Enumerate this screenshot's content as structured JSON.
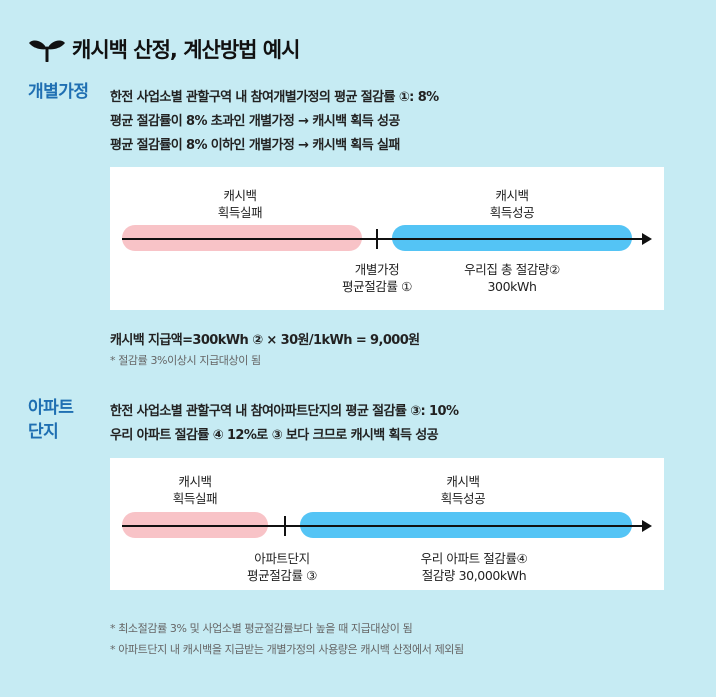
{
  "title": "캐시백 산정, 계산방법 예시",
  "sections": [
    {
      "label_line1": "개별가정",
      "lines": [
        "한전 사업소별 관할구역 내 참여개별가정의 평균 절감률 ①: 8%",
        "평균 절감률이 8% 초과인 개별가정 → 캐시백 획득 성공",
        "평균 절감률이 8% 이하인 개별가정 → 캐시백 획득 실패"
      ],
      "diagram": {
        "fail_line1": "캐시백",
        "fail_line2": "획득실패",
        "success_line1": "캐시백",
        "success_line2": "획득성공",
        "tick_line1": "개별가정",
        "tick_line2": "평균절감률 ①",
        "right_line1": "우리집 총 절감량②",
        "right_line2": "300kWh"
      },
      "formula": "캐시백 지급액=300kWh ② × 30원/1kWh = 9,000원",
      "note": "* 절감률 3%이상시 지급대상이 됨"
    },
    {
      "label_line1": "아파트",
      "label_line2": "단지",
      "lines": [
        "한전 사업소별 관할구역 내 참여아파트단지의 평균 절감률 ③: 10%",
        "우리 아파트 절감률 ④ 12%로  ③ 보다 크므로 캐시백 획득 성공"
      ],
      "diagram": {
        "fail_line1": "캐시백",
        "fail_line2": "획득실패",
        "success_line1": "캐시백",
        "success_line2": "획득성공",
        "tick_line1": "아파트단지",
        "tick_line2": "평균절감률 ③",
        "right_line1": "우리 아파트 절감률④",
        "right_line2": "절감량  30,000kWh"
      }
    }
  ],
  "footnotes": [
    "* 최소절감률 3% 및 사업소별 평균절감률보다 높을 때 지급대상이 됨",
    "* 아파트단지 내 캐시백을 지급받는 개별가정의 사용량은 캐시백 산정에서 제외됨"
  ],
  "colors": {
    "background": "#c6ebf3",
    "accent_label": "#1f6fb2",
    "fail_bar": "#f8c3c7",
    "success_bar": "#54c4f5"
  },
  "icons": {
    "title_icon": "sprout-icon"
  }
}
